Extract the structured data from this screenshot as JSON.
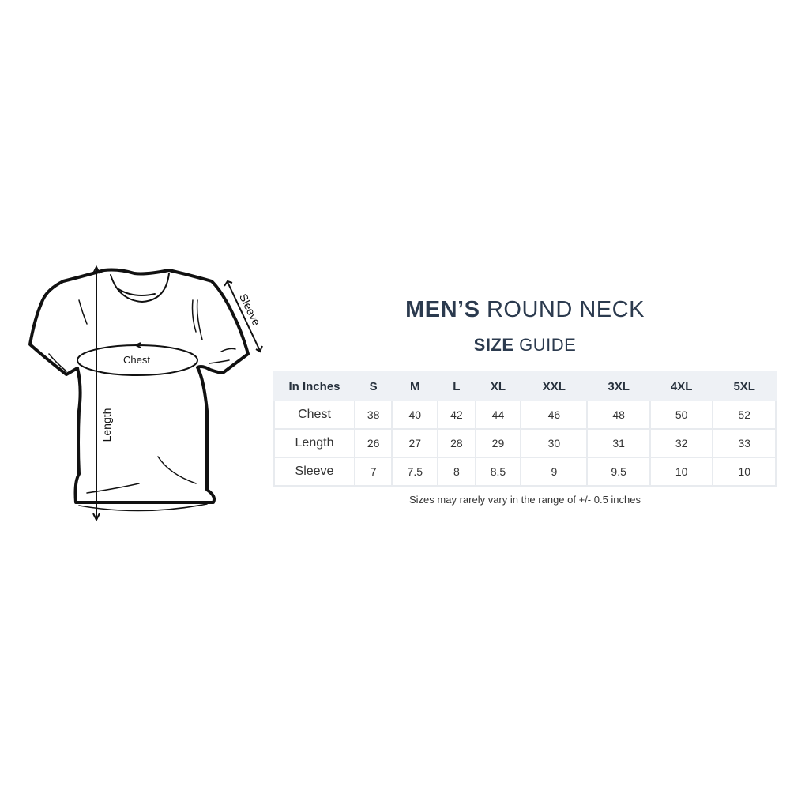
{
  "title": {
    "bold": "MEN’S",
    "light": "ROUND NECK"
  },
  "subtitle": {
    "bold": "SIZE",
    "light": "GUIDE"
  },
  "diagram_labels": {
    "chest": "Chest",
    "length": "Length",
    "sleeve": "Sleeve"
  },
  "table": {
    "headers": [
      "In Inches",
      "S",
      "M",
      "L",
      "XL",
      "XXL",
      "3XL",
      "4XL",
      "5XL"
    ],
    "rows": [
      {
        "label": "Chest",
        "values": [
          "38",
          "40",
          "42",
          "44",
          "46",
          "48",
          "50",
          "52"
        ]
      },
      {
        "label": "Length",
        "values": [
          "26",
          "27",
          "28",
          "29",
          "30",
          "31",
          "32",
          "33"
        ]
      },
      {
        "label": "Sleeve",
        "values": [
          "7",
          "7.5",
          "8",
          "8.5",
          "9",
          "9.5",
          "10",
          "10"
        ]
      }
    ]
  },
  "note": "Sizes may rarely vary in the range of +/- 0.5 inches",
  "colors": {
    "heading": "#2b3a4e",
    "header_bg": "#eef1f5",
    "border": "#e8ebef"
  }
}
